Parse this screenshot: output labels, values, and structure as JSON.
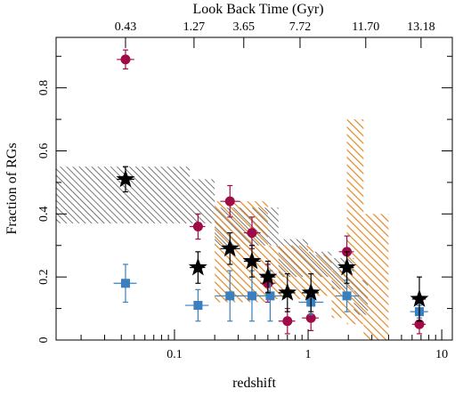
{
  "chart_data": {
    "type": "scatter",
    "xlabel": "redshift",
    "ylabel": "Fraction of RGs",
    "top_axis_label": "Look Back Time (Gyr)",
    "x_scale": "log",
    "xlim": [
      0.013,
      12
    ],
    "ylim": [
      0,
      0.96
    ],
    "x_tick_labels": [
      "0.1",
      "1",
      "10"
    ],
    "y_tick_labels": [
      "0",
      "0.2",
      "0.4",
      "0.6",
      "0.8"
    ],
    "top_tick_labels": [
      {
        "z": 0.043,
        "label": "0.43"
      },
      {
        "z": 0.14,
        "label": "1.27"
      },
      {
        "z": 0.33,
        "label": "3.65"
      },
      {
        "z": 0.87,
        "label": "7.72"
      },
      {
        "z": 2.7,
        "label": "11.70"
      },
      {
        "z": 7.0,
        "label": "13.18"
      }
    ],
    "colors": {
      "crimson": "#a00a46",
      "blue": "#3a7fbf",
      "star": "#000000",
      "orange": "#e08a2a",
      "gray": "#555555"
    },
    "series": [
      {
        "marker": "circle",
        "color": "crimson",
        "points": [
          {
            "x": 0.043,
            "y": 0.89,
            "xerr": [
              0.037,
              0.05
            ],
            "yerr": 0.03
          },
          {
            "x": 0.15,
            "y": 0.36,
            "xerr": [
              0.13,
              0.17
            ],
            "yerr": 0.04
          },
          {
            "x": 0.26,
            "y": 0.44,
            "xerr": [
              0.22,
              0.31
            ],
            "yerr": 0.05
          },
          {
            "x": 0.38,
            "y": 0.34,
            "xerr": [
              0.33,
              0.44
            ],
            "yerr": 0.05
          },
          {
            "x": 0.5,
            "y": 0.18,
            "xerr": [
              0.44,
              0.57
            ],
            "yerr": 0.06
          },
          {
            "x": 0.7,
            "y": 0.06,
            "xerr": [
              0.6,
              0.8
            ],
            "yerr": 0.04
          },
          {
            "x": 1.05,
            "y": 0.07,
            "xerr": [
              0.9,
              1.2
            ],
            "yerr": 0.04
          },
          {
            "x": 1.95,
            "y": 0.28,
            "xerr": [
              1.7,
              2.2
            ],
            "yerr": 0.05
          },
          {
            "x": 6.8,
            "y": 0.05,
            "xerr": [
              6.0,
              7.6
            ],
            "yerr": 0.03
          }
        ]
      },
      {
        "marker": "square",
        "color": "blue",
        "points": [
          {
            "x": 0.043,
            "y": 0.18,
            "xerr": [
              0.035,
              0.052
            ],
            "yerr": 0.06
          },
          {
            "x": 0.15,
            "y": 0.11,
            "xerr": [
              0.12,
              0.18
            ],
            "yerr": 0.05
          },
          {
            "x": 0.26,
            "y": 0.14,
            "xerr": [
              0.2,
              0.33
            ],
            "yerr": 0.08
          },
          {
            "x": 0.38,
            "y": 0.14,
            "xerr": [
              0.3,
              0.47
            ],
            "yerr": 0.08
          },
          {
            "x": 0.52,
            "y": 0.14,
            "xerr": [
              0.4,
              0.66
            ],
            "yerr": 0.08
          },
          {
            "x": 1.05,
            "y": 0.12,
            "xerr": [
              0.85,
              1.3
            ],
            "yerr": 0.04
          },
          {
            "x": 1.95,
            "y": 0.14,
            "xerr": [
              1.6,
              2.4
            ],
            "yerr": 0.05
          },
          {
            "x": 6.8,
            "y": 0.09,
            "xerr": [
              5.8,
              7.9
            ],
            "yerr": 0.02
          }
        ]
      },
      {
        "marker": "star",
        "color": "star",
        "points": [
          {
            "x": 0.043,
            "y": 0.51,
            "xerr": [
              0.037,
              0.05
            ],
            "yerr": 0.04
          },
          {
            "x": 0.15,
            "y": 0.23,
            "xerr": [
              0.13,
              0.17
            ],
            "yerr": 0.05
          },
          {
            "x": 0.26,
            "y": 0.29,
            "xerr": [
              0.22,
              0.31
            ],
            "yerr": 0.05
          },
          {
            "x": 0.38,
            "y": 0.25,
            "xerr": [
              0.33,
              0.44
            ],
            "yerr": 0.05
          },
          {
            "x": 0.5,
            "y": 0.2,
            "xerr": [
              0.44,
              0.57
            ],
            "yerr": 0.05
          },
          {
            "x": 0.7,
            "y": 0.15,
            "xerr": [
              0.6,
              0.8
            ],
            "yerr": 0.06
          },
          {
            "x": 1.05,
            "y": 0.15,
            "xerr": [
              0.9,
              1.2
            ],
            "yerr": 0.06
          },
          {
            "x": 1.95,
            "y": 0.23,
            "xerr": [
              1.7,
              2.2
            ],
            "yerr": 0.05
          },
          {
            "x": 6.8,
            "y": 0.13,
            "xerr": [
              6.0,
              7.6
            ],
            "yerr": 0.07
          }
        ]
      }
    ],
    "bands": [
      {
        "pattern": "gray",
        "segments": [
          {
            "x0": 0.013,
            "x1": 0.13,
            "y0": 0.37,
            "y1": 0.55
          },
          {
            "x0": 0.13,
            "x1": 0.2,
            "y0": 0.37,
            "y1": 0.51
          },
          {
            "x0": 0.2,
            "x1": 0.6,
            "y0": 0.3,
            "y1": 0.42
          },
          {
            "x0": 0.6,
            "x1": 1.0,
            "y0": 0.2,
            "y1": 0.32
          },
          {
            "x0": 1.0,
            "x1": 1.5,
            "y0": 0.2,
            "y1": 0.28
          },
          {
            "x0": 1.5,
            "x1": 2.2,
            "y0": 0.16,
            "y1": 0.26
          },
          {
            "x0": 2.2,
            "x1": 2.8,
            "y0": 0.08,
            "y1": 0.19
          }
        ]
      },
      {
        "pattern": "orange",
        "segments": [
          {
            "x0": 0.2,
            "x1": 0.5,
            "y0": 0.12,
            "y1": 0.44
          },
          {
            "x0": 0.5,
            "x1": 1.1,
            "y0": 0.13,
            "y1": 0.3
          },
          {
            "x0": 1.1,
            "x1": 1.5,
            "y0": 0.14,
            "y1": 0.27
          },
          {
            "x0": 1.5,
            "x1": 1.95,
            "y0": 0.07,
            "y1": 0.22
          },
          {
            "x0": 1.95,
            "x1": 2.6,
            "y0": 0.05,
            "y1": 0.7
          },
          {
            "x0": 2.6,
            "x1": 4.0,
            "y0": 0.0,
            "y1": 0.4
          }
        ]
      }
    ]
  }
}
